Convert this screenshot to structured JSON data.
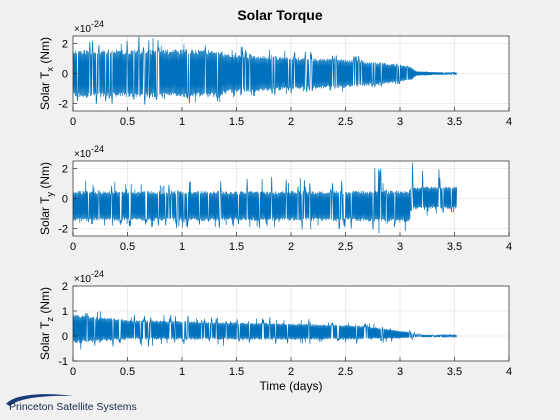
{
  "figure_title": "Solar Torque",
  "logo_text": "Princeton Satellite Systems",
  "colors": {
    "series": "#0072bd",
    "axes_bg": "#ffffff",
    "figure_bg": "#f0f0f0",
    "grid": "#dcdcdc"
  },
  "chart_data": [
    {
      "type": "line",
      "ylabel": "Solar T",
      "ylabel_sub": "x",
      "ylabel_unit": " (Nm)",
      "exponent_label": "×10",
      "exponent_power": "-24",
      "xlim": [
        0,
        4
      ],
      "ylim": [
        -2.5,
        2.5
      ],
      "xticks": [
        0,
        0.5,
        1,
        1.5,
        2,
        2.5,
        3,
        3.5,
        4
      ],
      "xtick_labels": [
        "0",
        "0.5",
        "1",
        "1.5",
        "2",
        "2.5",
        "3",
        "3.5",
        "4"
      ],
      "yticks": [
        -2,
        0,
        2
      ],
      "ytick_labels": [
        "-2",
        "0",
        "2"
      ],
      "grid": true,
      "envelope": {
        "x": [
          0,
          0.5,
          1,
          1.35,
          1.4,
          2,
          2.5,
          2.8,
          3.0,
          3.1,
          3.15,
          3.3,
          3.52
        ],
        "upper": [
          1.6,
          1.6,
          1.6,
          1.6,
          1.3,
          1.1,
          0.95,
          0.75,
          0.6,
          0.45,
          0.15,
          0.1,
          0.05
        ],
        "lower": [
          -1.6,
          -1.6,
          -1.6,
          -1.6,
          -1.3,
          -1.1,
          -0.95,
          -0.75,
          -0.6,
          -0.45,
          -0.15,
          -0.1,
          -0.05
        ],
        "spike_max": [
          2.5,
          2.5,
          2.5,
          2.5,
          1.9,
          1.6,
          1.3,
          1.0,
          0.7,
          0.6,
          0.2,
          0.12,
          0.08
        ]
      }
    },
    {
      "type": "line",
      "ylabel": "Solar T",
      "ylabel_sub": "y",
      "ylabel_unit": " (Nm)",
      "exponent_label": "×10",
      "exponent_power": "-24",
      "xlim": [
        0,
        4
      ],
      "ylim": [
        -2.5,
        2.5
      ],
      "xticks": [
        0,
        0.5,
        1,
        1.5,
        2,
        2.5,
        3,
        3.5,
        4
      ],
      "xtick_labels": [
        "0",
        "0.5",
        "1",
        "1.5",
        "2",
        "2.5",
        "3",
        "3.5",
        "4"
      ],
      "yticks": [
        -2,
        0,
        2
      ],
      "ytick_labels": [
        "-2",
        "0",
        "2"
      ],
      "grid": true,
      "envelope": {
        "x": [
          0,
          0.5,
          1,
          1.5,
          2,
          2.5,
          3.0,
          3.09,
          3.1,
          3.52
        ],
        "upper": [
          0.5,
          0.5,
          0.5,
          0.5,
          0.5,
          0.5,
          0.55,
          0.6,
          0.8,
          0.8
        ],
        "lower": [
          -1.5,
          -1.5,
          -1.5,
          -1.5,
          -1.5,
          -1.5,
          -1.6,
          -1.6,
          -0.7,
          -0.7
        ],
        "spike_max": [
          1.2,
          1.2,
          1.3,
          1.4,
          1.6,
          1.8,
          2.5,
          2.5,
          2.5,
          2.5
        ],
        "spike_min": [
          -1.9,
          -1.9,
          -2.0,
          -2.0,
          -2.1,
          -2.2,
          -2.5,
          -2.5,
          -1.2,
          -1.2
        ]
      }
    },
    {
      "type": "line",
      "ylabel": "Solar T",
      "ylabel_sub": "z",
      "ylabel_unit": " (Nm)",
      "exponent_label": "×10",
      "exponent_power": "-24",
      "xlabel": "Time (days)",
      "xlim": [
        0,
        4
      ],
      "ylim": [
        -1,
        2
      ],
      "xticks": [
        0,
        0.5,
        1,
        1.5,
        2,
        2.5,
        3,
        3.5,
        4
      ],
      "xtick_labels": [
        "0",
        "0.5",
        "1",
        "1.5",
        "2",
        "2.5",
        "3",
        "3.5",
        "4"
      ],
      "yticks": [
        -1,
        0,
        1,
        2
      ],
      "ytick_labels": [
        "-1",
        "0",
        "1",
        "2"
      ],
      "grid": true,
      "envelope": {
        "x": [
          0,
          0.05,
          0.5,
          1,
          1.5,
          2,
          2.5,
          2.8,
          3.0,
          3.1,
          3.15,
          3.52
        ],
        "upper": [
          0.9,
          0.85,
          0.65,
          0.6,
          0.55,
          0.5,
          0.45,
          0.35,
          0.2,
          0.15,
          0.05,
          0.03
        ],
        "lower": [
          -0.3,
          -0.3,
          -0.15,
          -0.15,
          -0.15,
          -0.15,
          -0.15,
          -0.12,
          -0.1,
          -0.08,
          -0.05,
          -0.03
        ],
        "spike_max": [
          1.3,
          1.2,
          0.95,
          0.85,
          0.8,
          0.75,
          0.6,
          0.5,
          0.35,
          0.25,
          0.08,
          0.05
        ],
        "spike_min": [
          -0.6,
          -0.55,
          -0.45,
          -0.4,
          -0.4,
          -0.4,
          -0.35,
          -0.3,
          -0.2,
          -0.15,
          -0.08,
          -0.05
        ]
      }
    }
  ]
}
